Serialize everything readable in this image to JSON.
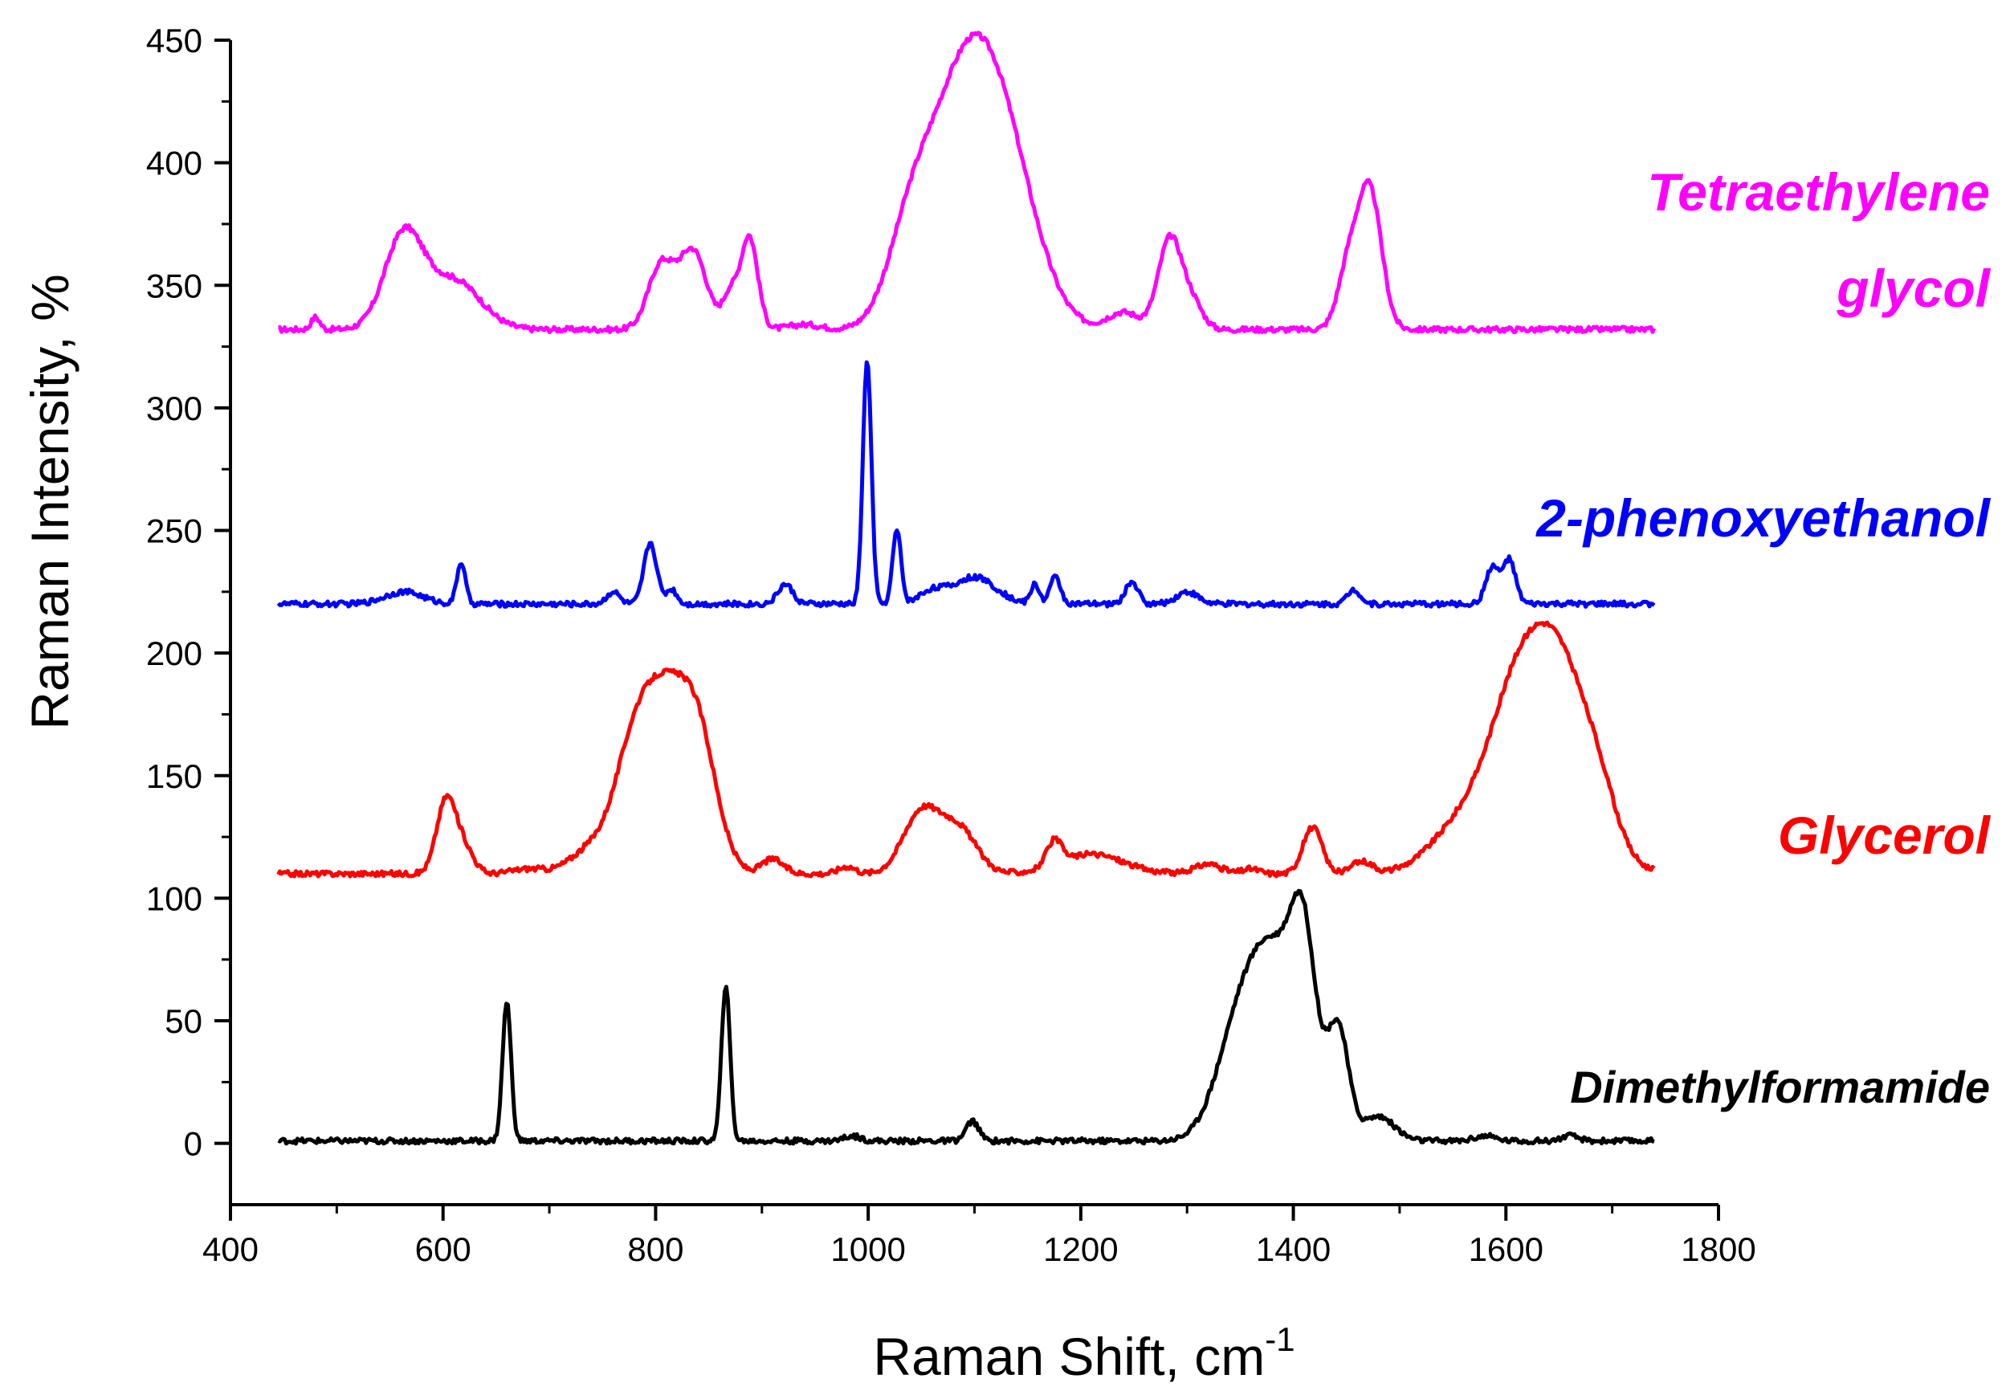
{
  "chart_data": {
    "type": "line",
    "title": "",
    "xlabel": "Raman Shift, cm",
    "xlabel_superscript": "-1",
    "ylabel": "Raman Intensity, %",
    "xlim": [
      400,
      1800
    ],
    "ylim": [
      -25,
      450
    ],
    "xticks": [
      400,
      600,
      800,
      1000,
      1200,
      1400,
      1600,
      1800
    ],
    "yticks": [
      0,
      50,
      100,
      150,
      200,
      250,
      300,
      350,
      400,
      450
    ],
    "grid": false,
    "legend": "inline labels at right",
    "series": [
      {
        "name": "Tetraethylene glycol",
        "label_lines": [
          "Tetraethylene",
          "glycol"
        ],
        "color": "#ff00ff",
        "baseline": 332,
        "peaks": [
          {
            "center": 480,
            "height": 5,
            "width": 4
          },
          {
            "center": 563,
            "height": 38,
            "width": 18
          },
          {
            "center": 610,
            "height": 20,
            "width": 25
          },
          {
            "center": 805,
            "height": 26,
            "width": 12
          },
          {
            "center": 835,
            "height": 32,
            "width": 13
          },
          {
            "center": 870,
            "height": 14,
            "width": 7
          },
          {
            "center": 888,
            "height": 38,
            "width": 8
          },
          {
            "center": 940,
            "height": 2,
            "width": 15
          },
          {
            "center": 1040,
            "height": 35,
            "width": 22
          },
          {
            "center": 1085,
            "height": 75,
            "width": 30
          },
          {
            "center": 1125,
            "height": 72,
            "width": 32
          },
          {
            "center": 1240,
            "height": 7,
            "width": 15
          },
          {
            "center": 1284,
            "height": 37,
            "width": 11
          },
          {
            "center": 1305,
            "height": 10,
            "width": 10
          },
          {
            "center": 1452,
            "height": 25,
            "width": 10
          },
          {
            "center": 1472,
            "height": 56,
            "width": 11
          }
        ]
      },
      {
        "name": "2-phenoxyethanol",
        "label_lines": [
          "2-phenoxyethanol"
        ],
        "color": "#0000ff",
        "baseline": 220,
        "peaks": [
          {
            "center": 563,
            "height": 5,
            "width": 18
          },
          {
            "center": 617,
            "height": 17,
            "width": 4
          },
          {
            "center": 760,
            "height": 5,
            "width": 6
          },
          {
            "center": 795,
            "height": 25,
            "width": 6
          },
          {
            "center": 815,
            "height": 6,
            "width": 5
          },
          {
            "center": 922,
            "height": 8,
            "width": 7
          },
          {
            "center": 999,
            "height": 100,
            "width": 4
          },
          {
            "center": 1027,
            "height": 30,
            "width": 4
          },
          {
            "center": 1060,
            "height": 5,
            "width": 12
          },
          {
            "center": 1100,
            "height": 11,
            "width": 20
          },
          {
            "center": 1157,
            "height": 8,
            "width": 4
          },
          {
            "center": 1176,
            "height": 11,
            "width": 5
          },
          {
            "center": 1248,
            "height": 9,
            "width": 6
          },
          {
            "center": 1300,
            "height": 5,
            "width": 10
          },
          {
            "center": 1457,
            "height": 6,
            "width": 6
          },
          {
            "center": 1587,
            "height": 15,
            "width": 6
          },
          {
            "center": 1603,
            "height": 18,
            "width": 6
          }
        ]
      },
      {
        "name": "Glycerol",
        "label_lines": [
          "Glycerol"
        ],
        "color": "#ff0000",
        "baseline": 110,
        "peaks": [
          {
            "center": 603,
            "height": 30,
            "width": 9
          },
          {
            "center": 620,
            "height": 10,
            "width": 9
          },
          {
            "center": 680,
            "height": 2,
            "width": 15
          },
          {
            "center": 740,
            "height": 10,
            "width": 20
          },
          {
            "center": 775,
            "height": 30,
            "width": 17
          },
          {
            "center": 805,
            "height": 68,
            "width": 22
          },
          {
            "center": 840,
            "height": 50,
            "width": 18
          },
          {
            "center": 910,
            "height": 6,
            "width": 10
          },
          {
            "center": 980,
            "height": 3,
            "width": 8
          },
          {
            "center": 1050,
            "height": 25,
            "width": 17
          },
          {
            "center": 1085,
            "height": 18,
            "width": 17
          },
          {
            "center": 1175,
            "height": 10,
            "width": 7
          },
          {
            "center": 1210,
            "height": 8,
            "width": 30
          },
          {
            "center": 1320,
            "height": 4,
            "width": 12
          },
          {
            "center": 1360,
            "height": 2,
            "width": 8
          },
          {
            "center": 1418,
            "height": 19,
            "width": 9
          },
          {
            "center": 1465,
            "height": 5,
            "width": 10
          },
          {
            "center": 1560,
            "height": 20,
            "width": 30
          },
          {
            "center": 1605,
            "height": 42,
            "width": 25
          },
          {
            "center": 1648,
            "height": 88,
            "width": 32
          },
          {
            "center": 1690,
            "height": 10,
            "width": 15
          }
        ]
      },
      {
        "name": "Dimethylformamide",
        "label_lines": [
          "Dimethylformamide"
        ],
        "color": "#000000",
        "baseline": 1,
        "peaks": [
          {
            "center": 660,
            "height": 57,
            "width": 4
          },
          {
            "center": 866,
            "height": 64,
            "width": 4
          },
          {
            "center": 985,
            "height": 2,
            "width": 8
          },
          {
            "center": 1098,
            "height": 8,
            "width": 6
          },
          {
            "center": 1350,
            "height": 45,
            "width": 22
          },
          {
            "center": 1385,
            "height": 65,
            "width": 22
          },
          {
            "center": 1410,
            "height": 62,
            "width": 12
          },
          {
            "center": 1442,
            "height": 45,
            "width": 10
          },
          {
            "center": 1480,
            "height": 10,
            "width": 15
          },
          {
            "center": 1580,
            "height": 2,
            "width": 10
          },
          {
            "center": 1660,
            "height": 2,
            "width": 8
          }
        ]
      }
    ],
    "x_range_per_series": [
      445,
      1740
    ]
  }
}
